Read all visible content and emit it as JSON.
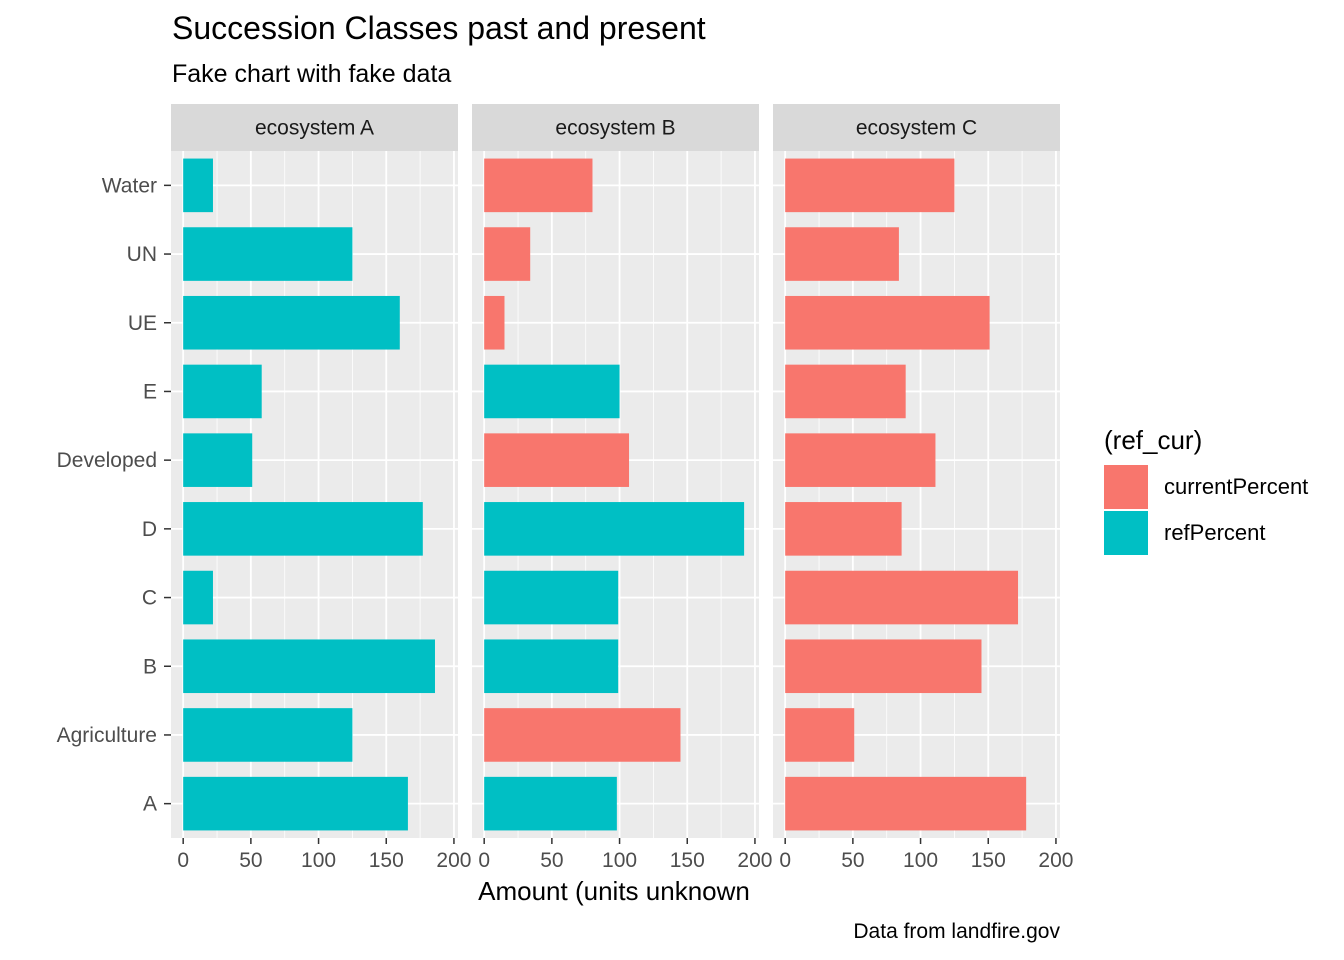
{
  "colors": {
    "currentPercent": "#F8766D",
    "refPercent": "#00BFC4",
    "panel_bg": "#EBEBEB",
    "strip_bg": "#D9D9D9",
    "grid": "#FFFFFF",
    "tick_text": "#4D4D4D"
  },
  "chart_data": {
    "type": "bar",
    "orientation": "horizontal",
    "title": "Succession Classes past and present",
    "subtitle": "Fake chart with fake data",
    "caption": "Data from landfire.gov",
    "xlabel": "Amount (units unknown",
    "ylabel": "",
    "xlim": [
      -9,
      203
    ],
    "x_ticks": [
      0,
      50,
      100,
      150,
      200
    ],
    "grid": true,
    "legend": {
      "title": "(ref_cur)",
      "placement": "right",
      "entries": [
        "currentPercent",
        "refPercent"
      ]
    },
    "categories": [
      "Water",
      "UN",
      "UE",
      "E",
      "Developed",
      "D",
      "C",
      "B",
      "Agriculture",
      "A"
    ],
    "facets": [
      {
        "name": "ecosystem A",
        "values": [
          22,
          125,
          160,
          58,
          51,
          177,
          22,
          186,
          125,
          166
        ],
        "groups": [
          "refPercent",
          "refPercent",
          "refPercent",
          "refPercent",
          "refPercent",
          "refPercent",
          "refPercent",
          "refPercent",
          "refPercent",
          "refPercent"
        ]
      },
      {
        "name": "ecosystem B",
        "values": [
          80,
          34,
          15,
          100,
          107,
          192,
          99,
          99,
          145,
          98
        ],
        "groups": [
          "currentPercent",
          "currentPercent",
          "currentPercent",
          "refPercent",
          "currentPercent",
          "refPercent",
          "refPercent",
          "refPercent",
          "currentPercent",
          "refPercent"
        ]
      },
      {
        "name": "ecosystem C",
        "values": [
          125,
          84,
          151,
          89,
          111,
          86,
          172,
          145,
          51,
          178
        ],
        "groups": [
          "currentPercent",
          "currentPercent",
          "currentPercent",
          "currentPercent",
          "currentPercent",
          "currentPercent",
          "currentPercent",
          "currentPercent",
          "currentPercent",
          "currentPercent"
        ]
      }
    ]
  }
}
